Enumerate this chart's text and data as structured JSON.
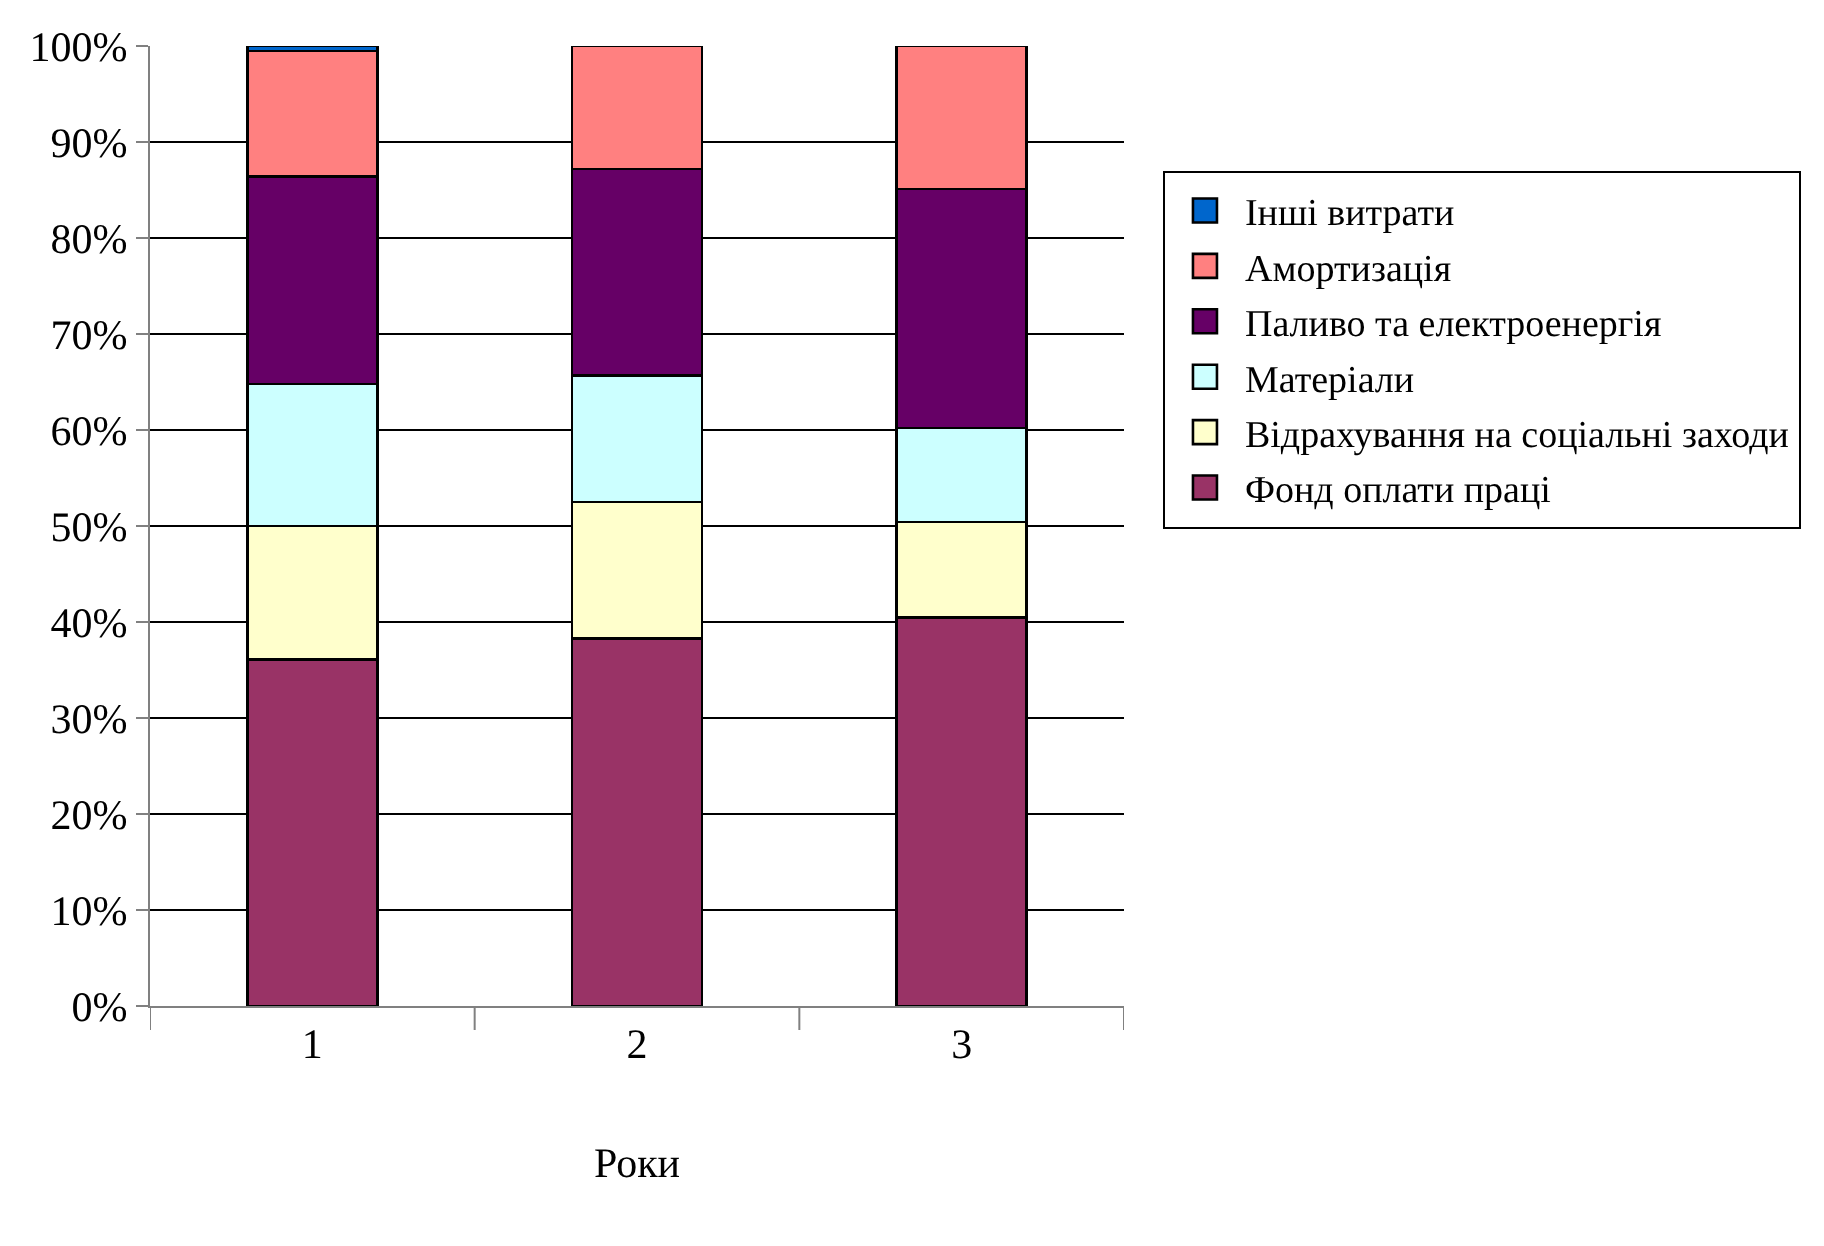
{
  "chart_data": {
    "type": "bar",
    "stacked": true,
    "xlabel": "Роки",
    "categories": [
      "1",
      "2",
      "3"
    ],
    "series": [
      {
        "name": "Фонд оплати праці",
        "color": "#993366",
        "values": [
          36.1,
          38.3,
          40.5
        ]
      },
      {
        "name": "Відрахування на соціальні заходи",
        "color": "#ffffcc",
        "values": [
          13.9,
          14.2,
          9.9
        ]
      },
      {
        "name": "Матеріали",
        "color": "#ccffff",
        "values": [
          14.8,
          13.2,
          9.8
        ]
      },
      {
        "name": "Паливо та електроенергія",
        "color": "#660066",
        "values": [
          21.6,
          21.5,
          24.9
        ]
      },
      {
        "name": "Амортизація",
        "color": "#ff8080",
        "values": [
          13.1,
          12.8,
          14.9
        ]
      },
      {
        "name": "Інші витрати",
        "color": "#0066cc",
        "values": [
          0.5,
          null,
          null
        ]
      }
    ],
    "ylim": [
      0,
      100
    ],
    "yticks": [
      {
        "value": 0,
        "label": "0%"
      },
      {
        "value": 10,
        "label": "10%"
      },
      {
        "value": 20,
        "label": "20%"
      },
      {
        "value": 30,
        "label": "30%"
      },
      {
        "value": 40,
        "label": "40%"
      },
      {
        "value": 50,
        "label": "50%"
      },
      {
        "value": 60,
        "label": "60%"
      },
      {
        "value": 70,
        "label": "70%"
      },
      {
        "value": 80,
        "label": "80%"
      },
      {
        "value": 90,
        "label": "90%"
      },
      {
        "value": 100,
        "label": "100%"
      }
    ],
    "grid": "y",
    "legend": "right"
  }
}
